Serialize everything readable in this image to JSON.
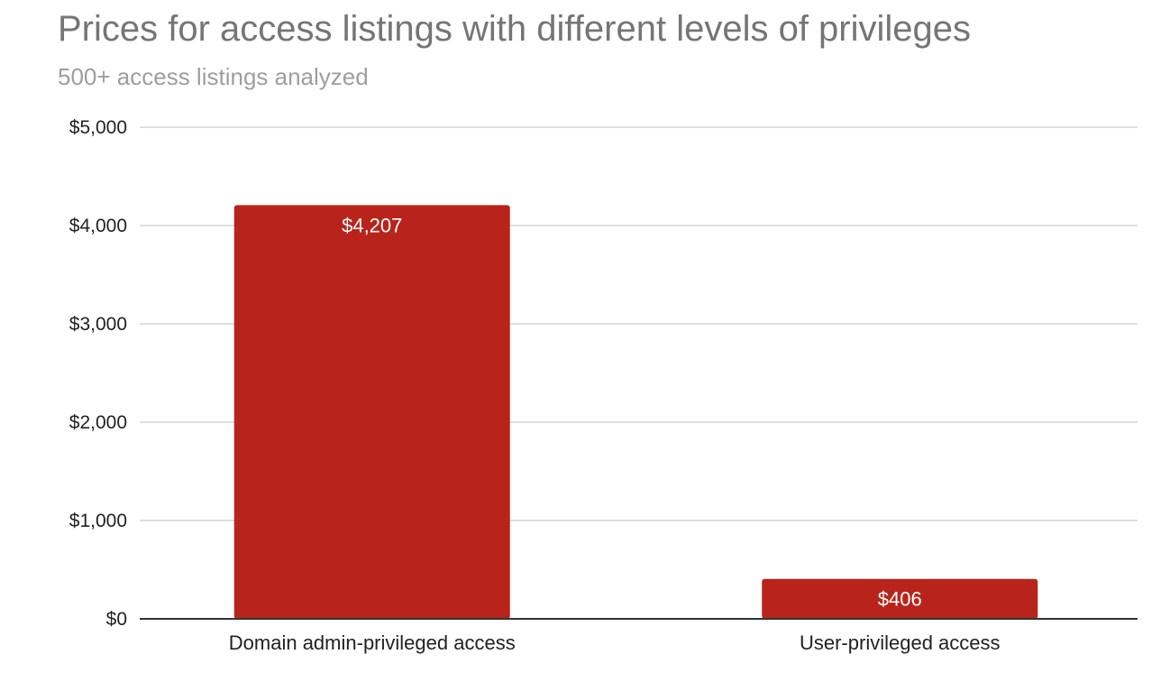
{
  "chart_data": {
    "type": "bar",
    "title": "Prices for access listings with different levels of privileges",
    "subtitle": "500+ access listings analyzed",
    "categories": [
      "Domain admin-privileged access",
      "User-privileged access"
    ],
    "values": [
      4207,
      406
    ],
    "data_labels": [
      "$4,207",
      "$406"
    ],
    "xlabel": "",
    "ylabel": "",
    "ylim": [
      0,
      5000
    ],
    "yticks": [
      0,
      1000,
      2000,
      3000,
      4000,
      5000
    ],
    "ytick_labels": [
      "$0",
      "$1,000",
      "$2,000",
      "$3,000",
      "$4,000",
      "$5,000"
    ],
    "grid": true,
    "legend": "none",
    "colors": {
      "bar": "#b8241b",
      "grid": "#cccccc",
      "baseline": "#333333",
      "title": "#757575",
      "subtitle": "#9e9e9e"
    }
  }
}
